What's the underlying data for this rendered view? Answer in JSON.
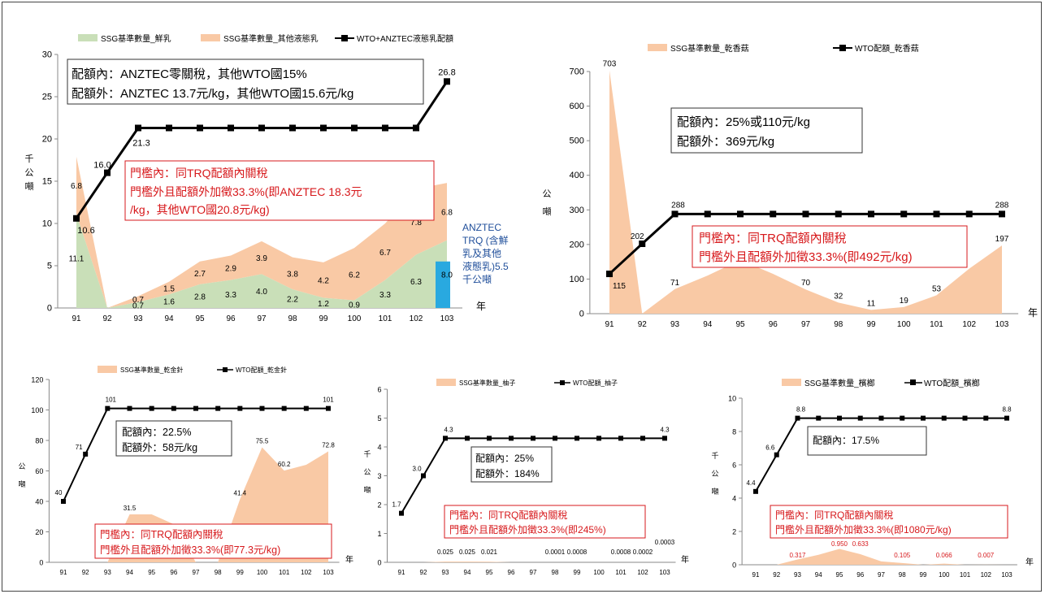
{
  "colors": {
    "fresh": "#c9dfb8",
    "liquid": "#f9c9a5",
    "wto": "#000000",
    "bar": "#29a9e0",
    "red": "#d7191c",
    "blue": "#1f4e9a"
  },
  "charts": [
    {
      "type": "area",
      "x": [
        "91",
        "92",
        "93",
        "94",
        "95",
        "96",
        "97",
        "98",
        "99",
        "100",
        "101",
        "102",
        "103"
      ],
      "xlabel": "年",
      "ylabel": "千公噸",
      "ylim": [
        0,
        30
      ],
      "yticks": [
        0,
        5,
        10,
        15,
        20,
        25,
        30
      ],
      "stacked": [
        {
          "name": "SSG基準數量_鮮乳",
          "values": [
            11.1,
            0,
            0.7,
            1.6,
            2.8,
            3.3,
            4.0,
            2.2,
            1.2,
            0.9,
            3.3,
            6.3,
            8.0
          ],
          "labels": [
            "11.1",
            "",
            "0.7",
            "1.6",
            "2.8",
            "3.3",
            "4.0",
            "2.2",
            "1.2",
            "0.9",
            "3.3",
            "6.3",
            "8.0"
          ]
        },
        {
          "name": "SSG基準數量_其他液態乳",
          "values": [
            6.8,
            0,
            0.7,
            1.5,
            2.7,
            2.9,
            3.9,
            3.8,
            4.2,
            6.2,
            6.7,
            7.8,
            6.8
          ],
          "labels": [
            "6.8",
            "",
            "0.7",
            "1.5",
            "2.7",
            "2.9",
            "3.9",
            "3.8",
            "4.2",
            "6.2",
            "6.7",
            "7.8",
            "6.8"
          ]
        }
      ],
      "line": {
        "name": "WTO+ANZTEC液態乳配額",
        "values": [
          10.6,
          16.0,
          21.3,
          21.3,
          21.3,
          21.3,
          21.3,
          21.3,
          21.3,
          21.3,
          21.3,
          21.3,
          26.8
        ],
        "labels": {
          "0": "10.6",
          "1": "16.0",
          "2": "21.3",
          "12": "26.8"
        }
      },
      "bar": {
        "value": 5.5,
        "text": [
          "ANZTEC",
          "TRQ (含鮮",
          "乳及其他",
          "液態乳)5.5",
          "千公噸"
        ]
      },
      "box1": [
        "配額內：ANZTEC零關稅，其他WTO國15%",
        "配額外：ANZTEC 13.7元/kg，其他WTO國15.6元/kg"
      ],
      "box2": [
        "門檻內：同TRQ配額內關稅",
        "門檻外且配額外加徵33.3%(即ANZTEC 18.3元",
        "/kg，其他WTO國20.8元/kg)"
      ]
    },
    {
      "type": "area",
      "x": [
        "91",
        "92",
        "93",
        "94",
        "95",
        "96",
        "97",
        "98",
        "99",
        "100",
        "101",
        "102",
        "103"
      ],
      "xlabel": "年",
      "ylabel": "公噸",
      "ylim": [
        0,
        700
      ],
      "yticks": [
        0,
        100,
        200,
        300,
        400,
        500,
        600,
        700
      ],
      "area": {
        "name": "SSG基準數量_乾香菇",
        "values": [
          703,
          0,
          71,
          110,
          155,
          115,
          70,
          32,
          11,
          19,
          53,
          130,
          197
        ],
        "labels": {
          "0": "703",
          "2": "71",
          "6": "70",
          "7": "32",
          "8": "11",
          "9": "19",
          "10": "53",
          "12": "197"
        }
      },
      "line": {
        "name": "WTO配額_乾香菇",
        "values": [
          115,
          202,
          288,
          288,
          288,
          288,
          288,
          288,
          288,
          288,
          288,
          288,
          288
        ],
        "labels": {
          "0": "115",
          "1": "202",
          "2": "288",
          "12": "288"
        }
      },
      "box1": [
        "配額內：25%或110元/kg",
        "配額外：369元/kg"
      ],
      "box2": [
        "門檻內：同TRQ配額內關稅",
        "門檻外且配額外加徵33.3%(即492元/kg)"
      ]
    },
    {
      "type": "area",
      "x": [
        "91",
        "92",
        "93",
        "94",
        "95",
        "96",
        "97",
        "98",
        "99",
        "100",
        "101",
        "102",
        "103"
      ],
      "xlabel": "年",
      "ylabel": "公噸",
      "ylim": [
        0,
        120
      ],
      "yticks": [
        0,
        20,
        40,
        60,
        80,
        100,
        120
      ],
      "area": {
        "name": "SSG基準數量_乾金針",
        "values": [
          0,
          0,
          0,
          31.5,
          31.5,
          25,
          0,
          0,
          41.4,
          75.5,
          60.2,
          64,
          72.8
        ],
        "labels": {
          "3": "31.5",
          "8": "41.4",
          "9": "75.5",
          "10": "60.2",
          "12": "72.8"
        }
      },
      "line": {
        "name": "WTO配額_乾金針",
        "values": [
          40,
          71,
          101,
          101,
          101,
          101,
          101,
          101,
          101,
          101,
          101,
          101,
          101
        ],
        "labels": {
          "0": "40",
          "1": "71",
          "2": "101",
          "12": "101"
        }
      },
      "box1": [
        "配額內：22.5%",
        "配額外：58元/kg"
      ],
      "box2": [
        "門檻內：同TRQ配額內關稅",
        "門檻外且配額外加徵33.3%(即77.3元/kg)"
      ]
    },
    {
      "type": "area",
      "x": [
        "91",
        "92",
        "93",
        "94",
        "95",
        "96",
        "97",
        "98",
        "99",
        "100",
        "101",
        "102",
        "103"
      ],
      "xlabel": "年",
      "ylabel": "千公噸",
      "ylim": [
        0,
        6
      ],
      "yticks": [
        0,
        1,
        2,
        3,
        4,
        5,
        6
      ],
      "area": {
        "name": "SSG基準數量_柚子",
        "values": [
          0,
          0,
          0.025,
          0.025,
          0.021,
          0,
          0,
          0.0001,
          0.0008,
          0,
          0.0008,
          0.0002,
          0.0003
        ],
        "labels": {
          "2": "0.025",
          "3": "0.025",
          "4": "0.021",
          "7": "0.0001",
          "8": "0.0008",
          "10": "0.0008",
          "11": "0.0002",
          "12": "0.0003"
        }
      },
      "line": {
        "name": "WTO配額_柚子",
        "values": [
          1.7,
          3.0,
          4.3,
          4.3,
          4.3,
          4.3,
          4.3,
          4.3,
          4.3,
          4.3,
          4.3,
          4.3,
          4.3
        ],
        "labels": {
          "0": "1.7",
          "1": "3.0",
          "2": "4.3",
          "12": "4.3"
        }
      },
      "box1": [
        "配額內：25%",
        "配額外：184%"
      ],
      "box2": [
        "門檻內：同TRQ配額內關稅",
        "門檻外且配額外加徵33.3%(即245%)"
      ]
    },
    {
      "type": "area",
      "x": [
        "91",
        "92",
        "93",
        "94",
        "95",
        "96",
        "97",
        "98",
        "99",
        "100",
        "101",
        "102",
        "103"
      ],
      "xlabel": "年",
      "ylabel": "千公噸",
      "ylim": [
        0,
        10
      ],
      "yticks": [
        0,
        2,
        4,
        6,
        8,
        10
      ],
      "area": {
        "name": "SSG基準數量_檳榔",
        "values": [
          0,
          0,
          0.317,
          0.6,
          0.95,
          0.633,
          0.2,
          0.105,
          0,
          0.066,
          0,
          0.007,
          0
        ],
        "labels": {
          "2": "0.317",
          "4": "0.950",
          "5": "0.633",
          "7": "0.105",
          "9": "0.066",
          "11": "0.007"
        }
      },
      "line": {
        "name": "WTO配額_檳榔",
        "values": [
          4.4,
          6.6,
          8.8,
          8.8,
          8.8,
          8.8,
          8.8,
          8.8,
          8.8,
          8.8,
          8.8,
          8.8,
          8.8
        ],
        "labels": {
          "0": "4.4",
          "1": "6.6",
          "2": "8.8",
          "12": "8.8"
        }
      },
      "box1": [
        "配額內：17.5%"
      ],
      "box2": [
        "門檻內：同TRQ配額內關稅",
        "門檻外且配額外加徵33.3%(即1080元/kg)"
      ]
    }
  ]
}
